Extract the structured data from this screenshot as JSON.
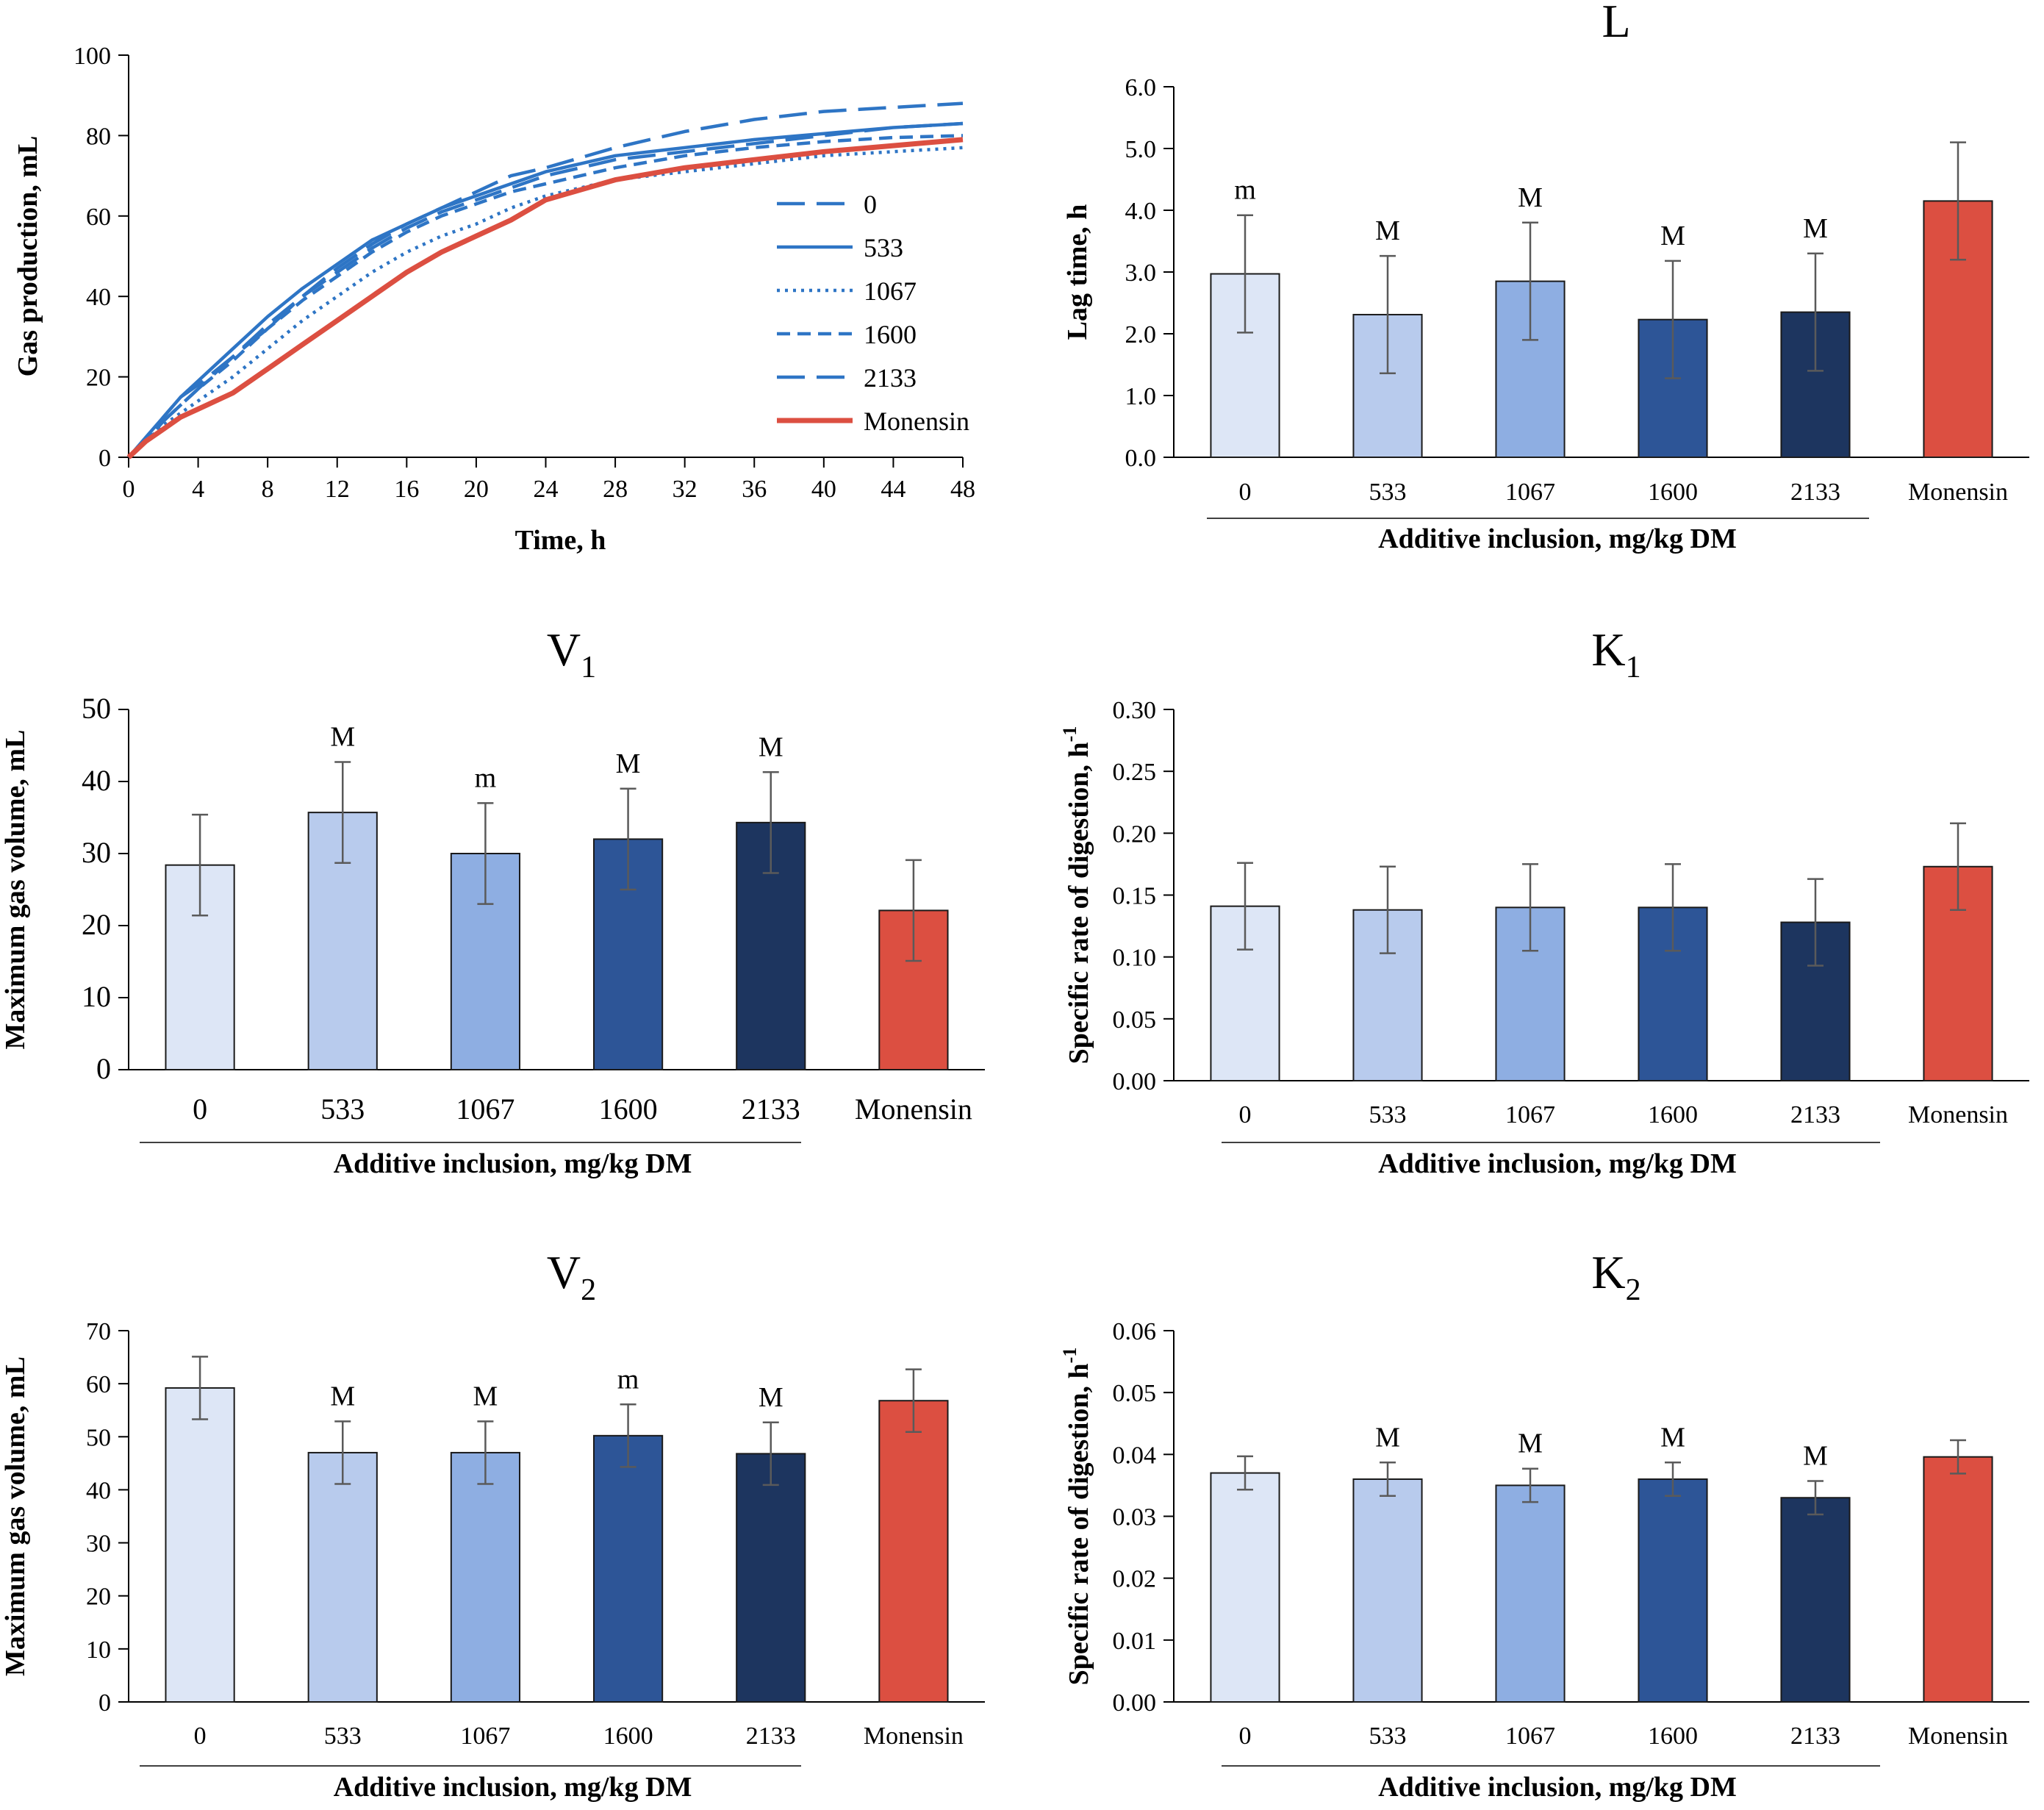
{
  "colors": {
    "axis": "#000000",
    "error_bar": "#5a5a5a",
    "curve_blue": "#2e75c5",
    "monensin": "#dc4f41",
    "bar_fill": [
      "#dde6f6",
      "#b8cbed",
      "#8eaee2",
      "#2d5597",
      "#1d355f",
      "#dc4f41"
    ],
    "bar_stroke": "#1a1a1a"
  },
  "chart_data": [
    {
      "id": "gas",
      "type": "line",
      "title": "",
      "xlabel": "Time, h",
      "ylabel": "Gas production, mL",
      "xlim": [
        0,
        48
      ],
      "ylim": [
        0,
        100
      ],
      "x_ticks": [
        0,
        4,
        8,
        12,
        16,
        20,
        24,
        28,
        32,
        36,
        40,
        44,
        48
      ],
      "y_ticks": [
        0,
        20,
        40,
        60,
        80,
        100
      ],
      "x": [
        0,
        1,
        2,
        3,
        4,
        6,
        8,
        10,
        12,
        14,
        16,
        18,
        20,
        22,
        24,
        28,
        32,
        36,
        40,
        44,
        48
      ],
      "series": [
        {
          "name": "0",
          "dash": "long",
          "values": [
            0,
            4,
            10,
            15,
            18,
            25,
            32,
            40,
            46,
            52,
            57,
            61,
            64,
            67,
            70,
            74,
            76,
            78,
            80,
            82,
            83
          ]
        },
        {
          "name": "533",
          "dash": "solid",
          "values": [
            0,
            5,
            10,
            15,
            19,
            27,
            35,
            42,
            48,
            54,
            58,
            62,
            65,
            68,
            71,
            75,
            77,
            79,
            80.5,
            82,
            83
          ]
        },
        {
          "name": "1067",
          "dash": "dotted",
          "values": [
            0,
            4,
            8,
            11,
            14,
            20,
            27,
            34,
            40,
            46,
            51,
            55,
            58,
            62,
            65,
            69,
            71,
            73,
            75,
            76,
            77
          ]
        },
        {
          "name": "1600",
          "dash": "short",
          "values": [
            0,
            4,
            9,
            13,
            17,
            24,
            32,
            39,
            45,
            51,
            56,
            60,
            63,
            66,
            68,
            72,
            75,
            77,
            78.5,
            79.5,
            80
          ]
        },
        {
          "name": "2133",
          "dash": "long",
          "values": [
            0,
            4,
            9,
            13,
            17,
            25,
            33,
            40,
            47,
            53,
            58,
            62,
            66,
            70,
            72,
            77,
            81,
            84,
            86,
            87,
            88
          ]
        },
        {
          "name": "Monensin",
          "dash": "solid",
          "values": [
            0,
            4,
            7,
            10,
            12,
            16,
            22,
            28,
            34,
            40,
            46,
            51,
            55,
            59,
            64,
            69,
            72,
            74,
            76,
            77.5,
            79
          ]
        }
      ],
      "legend_position": "right"
    },
    {
      "id": "L",
      "type": "bar",
      "title": "L",
      "title_sub": "",
      "xlabel": "Additive inclusion, mg/kg DM",
      "ylabel": "Lag time, h",
      "categories": [
        "0",
        "533",
        "1067",
        "1600",
        "2133",
        "Monensin"
      ],
      "values": [
        2.97,
        2.31,
        2.85,
        2.23,
        2.35,
        4.15
      ],
      "errors": [
        0.95,
        0.95,
        0.95,
        0.95,
        0.95,
        0.95
      ],
      "annotations": [
        "m",
        "M",
        "M",
        "M",
        "M",
        ""
      ],
      "ylim": [
        0,
        6
      ],
      "y_ticks": [
        "0.0",
        "1.0",
        "2.0",
        "3.0",
        "4.0",
        "5.0",
        "6.0"
      ]
    },
    {
      "id": "V1",
      "type": "bar",
      "title": "V",
      "title_sub": "1",
      "xlabel": "Additive inclusion, mg/kg DM",
      "ylabel": "Maximum gas volume, mL",
      "categories": [
        "0",
        "533",
        "1067",
        "1600",
        "2133",
        "Monensin"
      ],
      "values": [
        28.4,
        35.7,
        30.0,
        32.0,
        34.3,
        22.1
      ],
      "errors": [
        7.0,
        7.0,
        7.0,
        7.0,
        7.0,
        7.0
      ],
      "annotations": [
        "",
        "M",
        "m",
        "M",
        "M",
        ""
      ],
      "ylim": [
        0,
        50
      ],
      "y_ticks": [
        "0",
        "10",
        "20",
        "30",
        "40",
        "50"
      ],
      "large_categories": true
    },
    {
      "id": "K1",
      "type": "bar",
      "title": "K",
      "title_sub": "1",
      "xlabel": "Additive inclusion, mg/kg DM",
      "ylabel": "Specific rate of digestion, h",
      "ylabel_sup": "-1",
      "categories": [
        "0",
        "533",
        "1067",
        "1600",
        "2133",
        "Monensin"
      ],
      "values": [
        0.141,
        0.138,
        0.14,
        0.14,
        0.128,
        0.173
      ],
      "errors": [
        0.035,
        0.035,
        0.035,
        0.035,
        0.035,
        0.035
      ],
      "annotations": [
        "",
        "",
        "",
        "",
        "",
        ""
      ],
      "ylim": [
        0,
        0.3
      ],
      "y_ticks": [
        "0.00",
        "0.05",
        "0.10",
        "0.15",
        "0.20",
        "0.25",
        "0.30"
      ]
    },
    {
      "id": "V2",
      "type": "bar",
      "title": "V",
      "title_sub": "2",
      "xlabel": "Additive inclusion, mg/kg DM",
      "ylabel": "Maximum gas volume, mL",
      "categories": [
        "0",
        "533",
        "1067",
        "1600",
        "2133",
        "Monensin"
      ],
      "values": [
        59.2,
        47.0,
        47.0,
        50.2,
        46.8,
        56.8
      ],
      "errors": [
        5.9,
        5.9,
        5.9,
        5.9,
        5.9,
        5.9
      ],
      "annotations": [
        "",
        "M",
        "M",
        "m",
        "M",
        ""
      ],
      "ylim": [
        0,
        70
      ],
      "y_ticks": [
        "0",
        "10",
        "20",
        "30",
        "40",
        "50",
        "60",
        "70"
      ]
    },
    {
      "id": "K2",
      "type": "bar",
      "title": "K",
      "title_sub": "2",
      "xlabel": "Additive inclusion, mg/kg DM",
      "ylabel": "Specific rate of digestion, h",
      "ylabel_sup": "-1",
      "categories": [
        "0",
        "533",
        "1067",
        "1600",
        "2133",
        "Monensin"
      ],
      "values": [
        0.037,
        0.036,
        0.035,
        0.036,
        0.033,
        0.0396
      ],
      "errors": [
        0.0027,
        0.0027,
        0.0027,
        0.0027,
        0.0027,
        0.0027
      ],
      "annotations": [
        "",
        "M",
        "M",
        "M",
        "M",
        ""
      ],
      "ylim": [
        0,
        0.06
      ],
      "y_ticks": [
        "0.00",
        "0.01",
        "0.02",
        "0.03",
        "0.04",
        "0.05",
        "0.06"
      ]
    }
  ]
}
